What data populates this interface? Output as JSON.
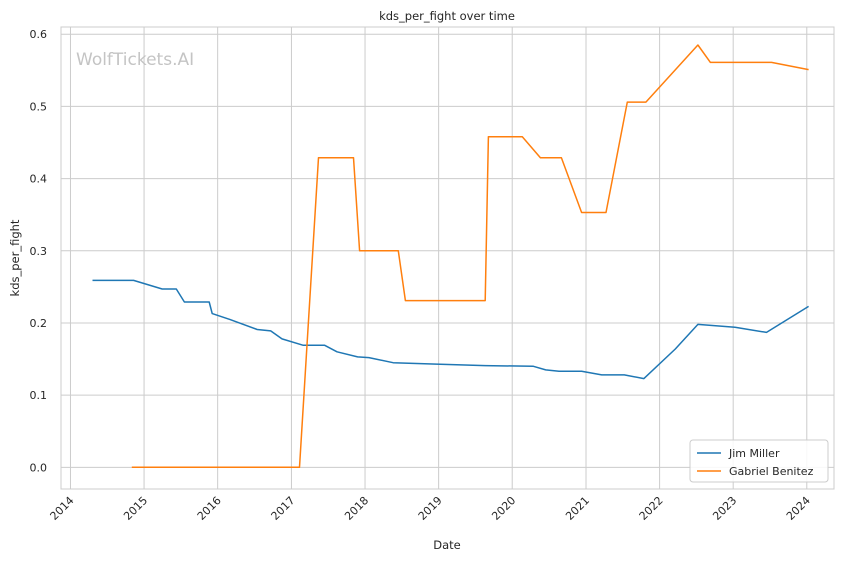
{
  "watermark": "WolfTickets.AI",
  "chart_data": {
    "type": "line",
    "title": "kds_per_fight over time",
    "xlabel": "Date",
    "ylabel": "kds_per_fight",
    "x_ticks": [
      "2014",
      "2015",
      "2016",
      "2017",
      "2018",
      "2019",
      "2020",
      "2021",
      "2022",
      "2023",
      "2024"
    ],
    "y_ticks": [
      "0.0",
      "0.1",
      "0.2",
      "0.3",
      "0.4",
      "0.5",
      "0.6"
    ],
    "xlim": [
      "2013-11-15",
      "2024-05-15"
    ],
    "ylim": [
      -0.03,
      0.61
    ],
    "grid": true,
    "legend_position": "lower-right",
    "series": [
      {
        "name": "Jim Miller",
        "color": "#1f77b4",
        "points": [
          [
            "2014-04-20",
            0.259
          ],
          [
            "2014-11-10",
            0.259
          ],
          [
            "2015-04-01",
            0.247
          ],
          [
            "2015-06-10",
            0.247
          ],
          [
            "2015-07-20",
            0.229
          ],
          [
            "2015-11-20",
            0.229
          ],
          [
            "2015-12-05",
            0.213
          ],
          [
            "2016-03-01",
            0.205
          ],
          [
            "2016-07-15",
            0.191
          ],
          [
            "2016-09-20",
            0.189
          ],
          [
            "2016-11-15",
            0.178
          ],
          [
            "2017-03-01",
            0.169
          ],
          [
            "2017-06-15",
            0.169
          ],
          [
            "2017-08-15",
            0.16
          ],
          [
            "2017-11-25",
            0.153
          ],
          [
            "2018-01-20",
            0.152
          ],
          [
            "2018-05-20",
            0.145
          ],
          [
            "2018-12-20",
            0.143
          ],
          [
            "2019-08-20",
            0.141
          ],
          [
            "2020-04-15",
            0.14
          ],
          [
            "2020-06-15",
            0.135
          ],
          [
            "2020-08-20",
            0.133
          ],
          [
            "2020-12-10",
            0.133
          ],
          [
            "2021-03-20",
            0.128
          ],
          [
            "2021-07-10",
            0.128
          ],
          [
            "2021-10-15",
            0.123
          ],
          [
            "2022-03-20",
            0.164
          ],
          [
            "2022-07-10",
            0.198
          ],
          [
            "2023-01-10",
            0.194
          ],
          [
            "2023-06-15",
            0.187
          ],
          [
            "2024-01-10",
            0.223
          ]
        ]
      },
      {
        "name": "Gabriel Benitez",
        "color": "#ff7f0e",
        "points": [
          [
            "2014-11-01",
            0.0
          ],
          [
            "2017-02-10",
            0.0
          ],
          [
            "2017-05-15",
            0.429
          ],
          [
            "2017-11-05",
            0.429
          ],
          [
            "2017-12-05",
            0.3
          ],
          [
            "2018-06-15",
            0.3
          ],
          [
            "2018-07-20",
            0.231
          ],
          [
            "2019-08-20",
            0.231
          ],
          [
            "2019-09-05",
            0.458
          ],
          [
            "2020-02-20",
            0.458
          ],
          [
            "2020-05-20",
            0.429
          ],
          [
            "2020-09-01",
            0.429
          ],
          [
            "2020-12-10",
            0.353
          ],
          [
            "2021-04-10",
            0.353
          ],
          [
            "2021-07-25",
            0.506
          ],
          [
            "2021-10-25",
            0.506
          ],
          [
            "2022-07-10",
            0.585
          ],
          [
            "2022-09-10",
            0.561
          ],
          [
            "2023-07-10",
            0.561
          ],
          [
            "2024-01-10",
            0.551
          ]
        ]
      }
    ]
  }
}
